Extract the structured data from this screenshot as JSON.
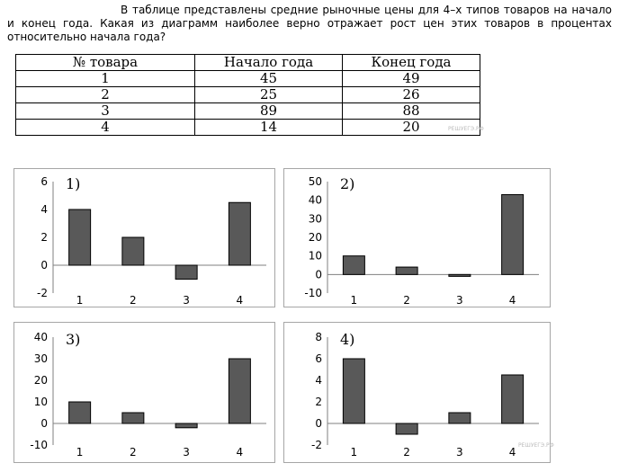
{
  "question": "В таблице представлены средние рыночные цены для 4–х типов товаров на начало и конец года. Какая из диаграмм наиболее верно отражает рост цен этих товаров в процентах относительно начала года?",
  "table": {
    "headers": [
      "№ товара",
      "Начало года",
      "Конец года"
    ],
    "rows": [
      [
        "1",
        "45",
        "49"
      ],
      [
        "2",
        "25",
        "26"
      ],
      [
        "3",
        "89",
        "88"
      ],
      [
        "4",
        "14",
        "20"
      ]
    ]
  },
  "watermark": "РЕШУЕГЭ.РФ",
  "chart_data": [
    {
      "type": "bar",
      "label": "1)",
      "categories": [
        "1",
        "2",
        "3",
        "4"
      ],
      "values": [
        4,
        2,
        -1,
        4.5
      ],
      "ylim": [
        -2,
        6
      ],
      "yticks": [
        -2,
        0,
        2,
        4,
        6
      ],
      "bar_color": "#595959"
    },
    {
      "type": "bar",
      "label": "2)",
      "categories": [
        "1",
        "2",
        "3",
        "4"
      ],
      "values": [
        10,
        4,
        -1,
        43
      ],
      "ylim": [
        -10,
        50
      ],
      "yticks": [
        -10,
        0,
        10,
        20,
        30,
        40,
        50
      ],
      "bar_color": "#595959"
    },
    {
      "type": "bar",
      "label": "3)",
      "categories": [
        "1",
        "2",
        "3",
        "4"
      ],
      "values": [
        10,
        5,
        -2,
        30
      ],
      "ylim": [
        -10,
        40
      ],
      "yticks": [
        -10,
        0,
        10,
        20,
        30,
        40
      ],
      "bar_color": "#595959"
    },
    {
      "type": "bar",
      "label": "4)",
      "categories": [
        "1",
        "2",
        "3",
        "4"
      ],
      "values": [
        6,
        -1,
        1,
        4.5
      ],
      "ylim": [
        -2,
        8
      ],
      "yticks": [
        -2,
        0,
        2,
        4,
        6,
        8
      ],
      "bar_color": "#595959"
    }
  ]
}
